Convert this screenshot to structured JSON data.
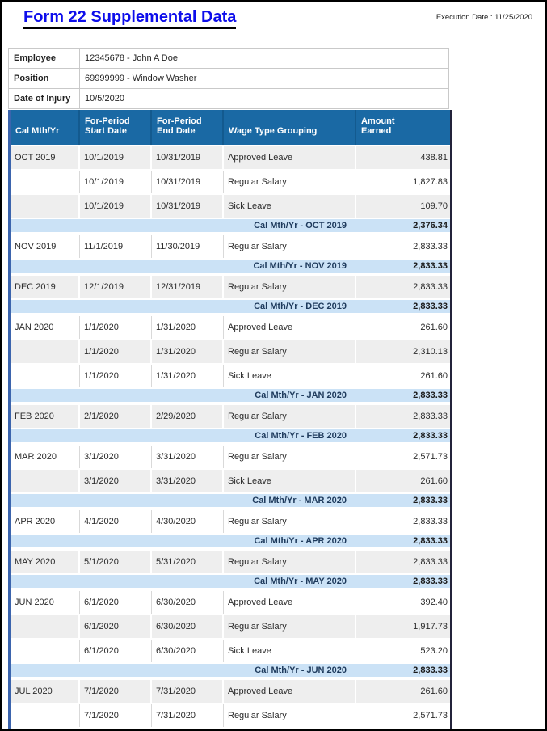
{
  "page": {
    "title": "Form 22 Supplemental Data",
    "execution_date": "Execution Date : 11/25/2020"
  },
  "info": {
    "rows": [
      {
        "label": "Employee",
        "value": "12345678 - John A Doe"
      },
      {
        "label": "Position",
        "value": "69999999 - Window Washer"
      },
      {
        "label": "Date of Injury",
        "value": "10/5/2020"
      }
    ]
  },
  "table": {
    "columns": [
      "Cal Mth/Yr",
      "For-Period Start Date",
      "For-Period End Date",
      "Wage Type Grouping",
      "Amount Earned"
    ],
    "groups": [
      {
        "month": "OCT 2019",
        "rows": [
          {
            "start": "10/1/2019",
            "end": "10/31/2019",
            "wage_type": "Approved Leave",
            "amount": "438.81"
          },
          {
            "start": "10/1/2019",
            "end": "10/31/2019",
            "wage_type": "Regular Salary",
            "amount": "1,827.83"
          },
          {
            "start": "10/1/2019",
            "end": "10/31/2019",
            "wage_type": "Sick Leave",
            "amount": "109.70"
          }
        ],
        "subtotal_label": "Cal Mth/Yr - OCT 2019",
        "subtotal": "2,376.34"
      },
      {
        "month": "NOV 2019",
        "rows": [
          {
            "start": "11/1/2019",
            "end": "11/30/2019",
            "wage_type": "Regular Salary",
            "amount": "2,833.33"
          }
        ],
        "subtotal_label": "Cal Mth/Yr - NOV 2019",
        "subtotal": "2,833.33"
      },
      {
        "month": "DEC 2019",
        "rows": [
          {
            "start": "12/1/2019",
            "end": "12/31/2019",
            "wage_type": "Regular Salary",
            "amount": "2,833.33"
          }
        ],
        "subtotal_label": "Cal Mth/Yr - DEC 2019",
        "subtotal": "2,833.33"
      },
      {
        "month": "JAN 2020",
        "rows": [
          {
            "start": "1/1/2020",
            "end": "1/31/2020",
            "wage_type": "Approved Leave",
            "amount": "261.60"
          },
          {
            "start": "1/1/2020",
            "end": "1/31/2020",
            "wage_type": "Regular Salary",
            "amount": "2,310.13"
          },
          {
            "start": "1/1/2020",
            "end": "1/31/2020",
            "wage_type": "Sick Leave",
            "amount": "261.60"
          }
        ],
        "subtotal_label": "Cal Mth/Yr - JAN 2020",
        "subtotal": "2,833.33"
      },
      {
        "month": "FEB 2020",
        "rows": [
          {
            "start": "2/1/2020",
            "end": "2/29/2020",
            "wage_type": "Regular Salary",
            "amount": "2,833.33"
          }
        ],
        "subtotal_label": "Cal Mth/Yr - FEB 2020",
        "subtotal": "2,833.33"
      },
      {
        "month": "MAR 2020",
        "rows": [
          {
            "start": "3/1/2020",
            "end": "3/31/2020",
            "wage_type": "Regular Salary",
            "amount": "2,571.73"
          },
          {
            "start": "3/1/2020",
            "end": "3/31/2020",
            "wage_type": "Sick Leave",
            "amount": "261.60"
          }
        ],
        "subtotal_label": "Cal Mth/Yr - MAR 2020",
        "subtotal": "2,833.33"
      },
      {
        "month": "APR 2020",
        "rows": [
          {
            "start": "4/1/2020",
            "end": "4/30/2020",
            "wage_type": "Regular Salary",
            "amount": "2,833.33"
          }
        ],
        "subtotal_label": "Cal Mth/Yr - APR 2020",
        "subtotal": "2,833.33"
      },
      {
        "month": "MAY 2020",
        "rows": [
          {
            "start": "5/1/2020",
            "end": "5/31/2020",
            "wage_type": "Regular Salary",
            "amount": "2,833.33"
          }
        ],
        "subtotal_label": "Cal Mth/Yr - MAY 2020",
        "subtotal": "2,833.33"
      },
      {
        "month": "JUN 2020",
        "rows": [
          {
            "start": "6/1/2020",
            "end": "6/30/2020",
            "wage_type": "Approved Leave",
            "amount": "392.40"
          },
          {
            "start": "6/1/2020",
            "end": "6/30/2020",
            "wage_type": "Regular Salary",
            "amount": "1,917.73"
          },
          {
            "start": "6/1/2020",
            "end": "6/30/2020",
            "wage_type": "Sick Leave",
            "amount": "523.20"
          }
        ],
        "subtotal_label": "Cal Mth/Yr - JUN 2020",
        "subtotal": "2,833.33"
      },
      {
        "month": "JUL 2020",
        "rows": [
          {
            "start": "7/1/2020",
            "end": "7/31/2020",
            "wage_type": "Approved Leave",
            "amount": "261.60"
          },
          {
            "start": "7/1/2020",
            "end": "7/31/2020",
            "wage_type": "Regular Salary",
            "amount": "2,571.73"
          }
        ],
        "subtotal_label": null,
        "subtotal": null
      }
    ]
  },
  "colors": {
    "title_blue": "#0d0deb",
    "header_bg": "#1a69a4",
    "header_separator": "#135a8f",
    "row_gray": "#eeeeee",
    "row_white": "#ffffff",
    "subtotal_bg": "#cbe2f6",
    "subtotal_text": "#1e3a5c",
    "table_left_border": "#3b64ad",
    "table_right_border": "#23233a"
  }
}
